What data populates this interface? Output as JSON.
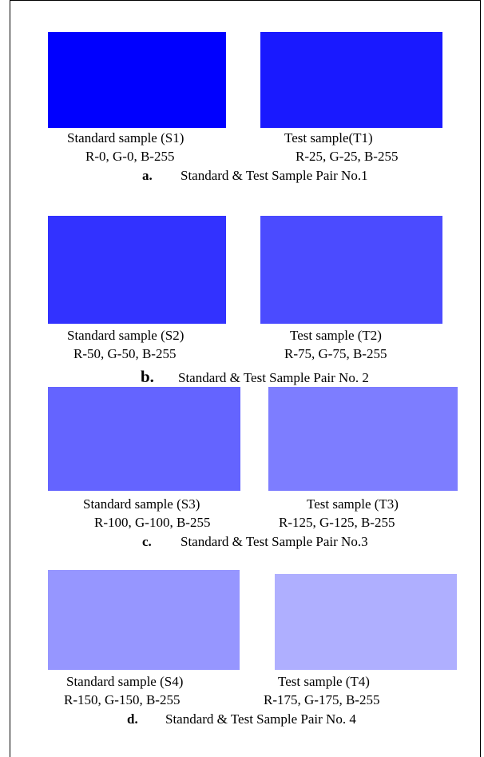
{
  "pairs": [
    {
      "standard": {
        "label": "Standard sample (S1)",
        "rgb": "R-0, G-0, B-255",
        "color": "#0000ff"
      },
      "test": {
        "label": "Test sample(T1)",
        "rgb": "R-25, G-25, B-255",
        "color": "#1919ff"
      },
      "caption_letter": "a.",
      "caption_text": "Standard & Test Sample Pair No.1"
    },
    {
      "standard": {
        "label": "Standard sample (S2)",
        "rgb": "R-50, G-50, B-255",
        "color": "#3232ff"
      },
      "test": {
        "label": "Test sample (T2)",
        "rgb": "R-75, G-75, B-255",
        "color": "#4b4bff"
      },
      "caption_letter": "b.",
      "caption_text": "Standard & Test Sample Pair No. 2"
    },
    {
      "standard": {
        "label": "Standard sample (S3)",
        "rgb": "R-100, G-100, B-255",
        "color": "#6464ff"
      },
      "test": {
        "label": "Test sample (T3)",
        "rgb": "R-125, G-125, B-255",
        "color": "#7d7dff"
      },
      "caption_letter": "c.",
      "caption_text": "Standard & Test Sample Pair No.3"
    },
    {
      "standard": {
        "label": "Standard sample (S4)",
        "rgb": "R-150, G-150, B-255",
        "color": "#9696ff"
      },
      "test": {
        "label": "Test sample (T4)",
        "rgb": "R-175, G-175, B-255",
        "color": "#afafff"
      },
      "caption_letter": "d.",
      "caption_text": "Standard & Test Sample Pair No. 4"
    }
  ]
}
